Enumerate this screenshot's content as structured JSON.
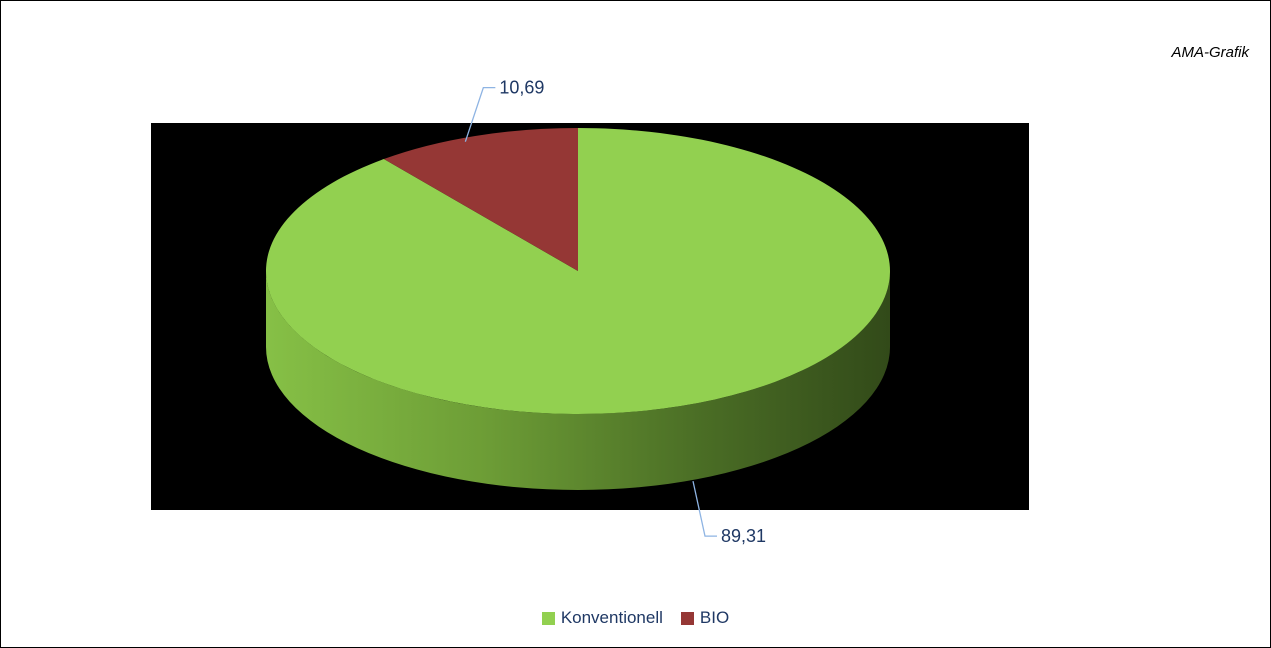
{
  "source_label": "AMA-Grafik",
  "colors": {
    "background": "#000000",
    "konventionell": "#92d050",
    "konventionell_side": "#6f9c39",
    "bio": "#953735",
    "bio_side": "#6e2826",
    "leader_line": "#8eb4e3",
    "label_text": "#1f3864"
  },
  "chart_data": {
    "type": "pie",
    "style": "3d",
    "categories": [
      "Konventionell",
      "BIO"
    ],
    "values": [
      89.31,
      10.69
    ],
    "data_labels": [
      "89,31",
      "10,69"
    ],
    "legend": [
      "Konventionell",
      "BIO"
    ],
    "legend_position": "bottom"
  },
  "legend": {
    "items": [
      {
        "label": "Konventionell",
        "color": "#92d050"
      },
      {
        "label": "BIO",
        "color": "#953735"
      }
    ]
  }
}
